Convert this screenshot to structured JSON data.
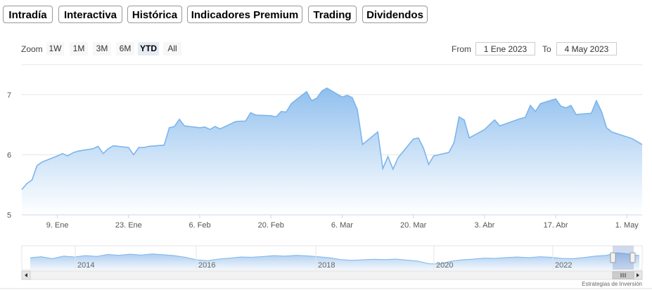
{
  "tabs": [
    {
      "label": "Intradía",
      "style": "purple",
      "active": false
    },
    {
      "label": "Interactiva",
      "style": "purple",
      "active": false
    },
    {
      "label": "Histórica",
      "style": "purple",
      "active": true
    },
    {
      "label": "Indicadores Premium",
      "style": "salmon",
      "active": false
    },
    {
      "label": "Trading",
      "style": "salmon",
      "active": false
    },
    {
      "label": "Dividendos",
      "style": "purple",
      "active": false
    }
  ],
  "zoom": {
    "label": "Zoom",
    "buttons": [
      "1W",
      "1M",
      "3M",
      "6M",
      "YTD",
      "All"
    ],
    "selected": "YTD"
  },
  "range": {
    "from_label": "From",
    "from_value": "1 Ene 2023",
    "to_label": "To",
    "to_value": "4 May 2023"
  },
  "credit": "Estrategias de Inversión",
  "colors": {
    "line": "#7cb5ec",
    "fill_top": "#8fbfee",
    "fill_bottom": "#ffffff",
    "grid": "#e6e6e6"
  },
  "chart_data": {
    "type": "area",
    "ylim": [
      5,
      7.5
    ],
    "yticks": [
      5,
      6,
      7
    ],
    "xlim": [
      "2023-01-02",
      "2023-05-04"
    ],
    "xticks": [
      {
        "date": "2023-01-09",
        "label": "9. Ene"
      },
      {
        "date": "2023-01-23",
        "label": "23. Ene"
      },
      {
        "date": "2023-02-06",
        "label": "6. Feb"
      },
      {
        "date": "2023-02-20",
        "label": "20. Feb"
      },
      {
        "date": "2023-03-06",
        "label": "6. Mar"
      },
      {
        "date": "2023-03-20",
        "label": "20. Mar"
      },
      {
        "date": "2023-04-03",
        "label": "3. Abr"
      },
      {
        "date": "2023-04-17",
        "label": "17. Abr"
      },
      {
        "date": "2023-05-01",
        "label": "1. May"
      }
    ],
    "points": [
      [
        "2023-01-02",
        5.42
      ],
      [
        "2023-01-03",
        5.52
      ],
      [
        "2023-01-04",
        5.58
      ],
      [
        "2023-01-05",
        5.82
      ],
      [
        "2023-01-06",
        5.88
      ],
      [
        "2023-01-09",
        5.98
      ],
      [
        "2023-01-10",
        6.02
      ],
      [
        "2023-01-11",
        5.98
      ],
      [
        "2023-01-12",
        6.03
      ],
      [
        "2023-01-13",
        6.06
      ],
      [
        "2023-01-16",
        6.1
      ],
      [
        "2023-01-17",
        6.14
      ],
      [
        "2023-01-18",
        6.02
      ],
      [
        "2023-01-19",
        6.1
      ],
      [
        "2023-01-20",
        6.15
      ],
      [
        "2023-01-23",
        6.12
      ],
      [
        "2023-01-24",
        6.0
      ],
      [
        "2023-01-25",
        6.12
      ],
      [
        "2023-01-26",
        6.12
      ],
      [
        "2023-01-27",
        6.14
      ],
      [
        "2023-01-30",
        6.16
      ],
      [
        "2023-01-31",
        6.45
      ],
      [
        "2023-02-01",
        6.47
      ],
      [
        "2023-02-02",
        6.59
      ],
      [
        "2023-02-03",
        6.48
      ],
      [
        "2023-02-06",
        6.45
      ],
      [
        "2023-02-07",
        6.46
      ],
      [
        "2023-02-08",
        6.42
      ],
      [
        "2023-02-09",
        6.47
      ],
      [
        "2023-02-10",
        6.43
      ],
      [
        "2023-02-13",
        6.55
      ],
      [
        "2023-02-14",
        6.56
      ],
      [
        "2023-02-15",
        6.56
      ],
      [
        "2023-02-16",
        6.7
      ],
      [
        "2023-02-17",
        6.66
      ],
      [
        "2023-02-20",
        6.65
      ],
      [
        "2023-02-21",
        6.63
      ],
      [
        "2023-02-22",
        6.72
      ],
      [
        "2023-02-23",
        6.71
      ],
      [
        "2023-02-24",
        6.85
      ],
      [
        "2023-02-27",
        7.05
      ],
      [
        "2023-02-28",
        6.9
      ],
      [
        "2023-03-01",
        6.94
      ],
      [
        "2023-03-02",
        7.06
      ],
      [
        "2023-03-03",
        7.11
      ],
      [
        "2023-03-06",
        6.96
      ],
      [
        "2023-03-07",
        6.99
      ],
      [
        "2023-03-08",
        6.95
      ],
      [
        "2023-03-09",
        6.75
      ],
      [
        "2023-03-10",
        6.17
      ],
      [
        "2023-03-13",
        6.38
      ],
      [
        "2023-03-14",
        5.77
      ],
      [
        "2023-03-15",
        5.97
      ],
      [
        "2023-03-16",
        5.76
      ],
      [
        "2023-03-17",
        5.95
      ],
      [
        "2023-03-20",
        6.26
      ],
      [
        "2023-03-21",
        6.28
      ],
      [
        "2023-03-22",
        6.11
      ],
      [
        "2023-03-23",
        5.84
      ],
      [
        "2023-03-24",
        5.98
      ],
      [
        "2023-03-27",
        6.04
      ],
      [
        "2023-03-28",
        6.2
      ],
      [
        "2023-03-29",
        6.63
      ],
      [
        "2023-03-30",
        6.58
      ],
      [
        "2023-03-31",
        6.28
      ],
      [
        "2023-04-03",
        6.42
      ],
      [
        "2023-04-04",
        6.5
      ],
      [
        "2023-04-05",
        6.58
      ],
      [
        "2023-04-06",
        6.48
      ],
      [
        "2023-04-10",
        6.6
      ],
      [
        "2023-04-11",
        6.62
      ],
      [
        "2023-04-12",
        6.82
      ],
      [
        "2023-04-13",
        6.72
      ],
      [
        "2023-04-14",
        6.85
      ],
      [
        "2023-04-17",
        6.93
      ],
      [
        "2023-04-18",
        6.81
      ],
      [
        "2023-04-19",
        6.78
      ],
      [
        "2023-04-20",
        6.82
      ],
      [
        "2023-04-21",
        6.67
      ],
      [
        "2023-04-24",
        6.69
      ],
      [
        "2023-04-25",
        6.9
      ],
      [
        "2023-04-26",
        6.72
      ],
      [
        "2023-04-27",
        6.45
      ],
      [
        "2023-04-28",
        6.38
      ],
      [
        "2023-05-02",
        6.27
      ],
      [
        "2023-05-03",
        6.22
      ],
      [
        "2023-05-04",
        6.17
      ]
    ]
  },
  "navigator": {
    "year_labels": [
      "2014",
      "2016",
      "2018",
      "2020",
      "2022"
    ],
    "series": [
      0.55,
      0.62,
      0.48,
      0.66,
      0.6,
      0.7,
      0.64,
      0.78,
      0.72,
      0.8,
      0.74,
      0.82,
      0.76,
      0.7,
      0.58,
      0.4,
      0.34,
      0.45,
      0.52,
      0.6,
      0.58,
      0.63,
      0.7,
      0.66,
      0.72,
      0.68,
      0.62,
      0.55,
      0.42,
      0.36,
      0.4,
      0.44,
      0.41,
      0.45,
      0.38,
      0.3,
      0.12,
      0.1,
      0.3,
      0.4,
      0.45,
      0.52,
      0.5,
      0.56,
      0.6,
      0.55,
      0.62,
      0.58,
      0.5,
      0.48,
      0.56,
      0.66,
      0.72,
      0.9,
      0.82,
      0.7
    ]
  }
}
